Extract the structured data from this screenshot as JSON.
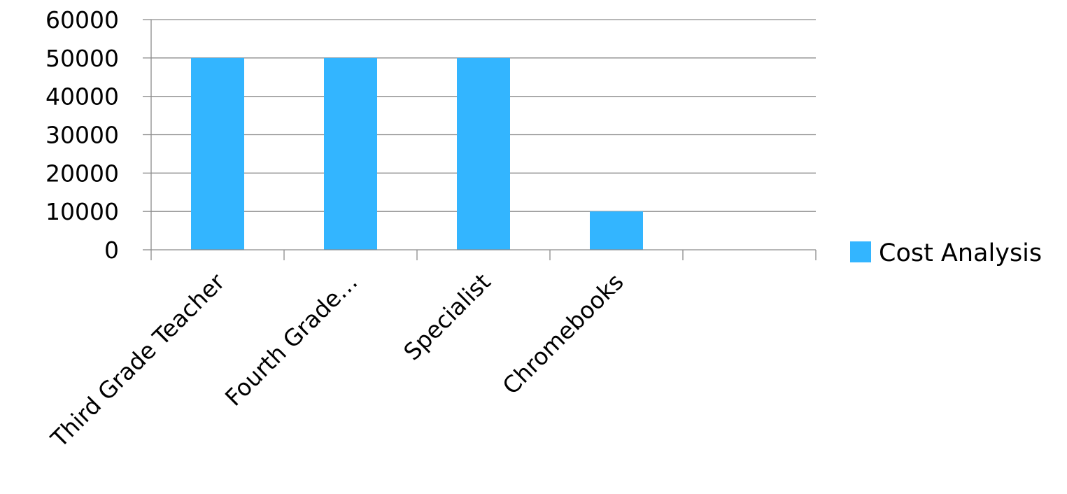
{
  "chart_data": {
    "type": "bar",
    "categories": [
      "Third Grade Teacher",
      "Fourth Grade…",
      "Specialist",
      "Chromebooks",
      ""
    ],
    "series": [
      {
        "name": "Cost Analysis",
        "values": [
          50000,
          50000,
          50000,
          10000,
          0
        ],
        "color": "#33b5ff"
      }
    ],
    "ylim": [
      0,
      60000
    ],
    "yticks": [
      0,
      10000,
      20000,
      30000,
      40000,
      50000,
      60000
    ],
    "grid": true,
    "legend_position": "right",
    "gridline_color": "#8c8c8c",
    "axis_color": "#8c8c8c"
  }
}
